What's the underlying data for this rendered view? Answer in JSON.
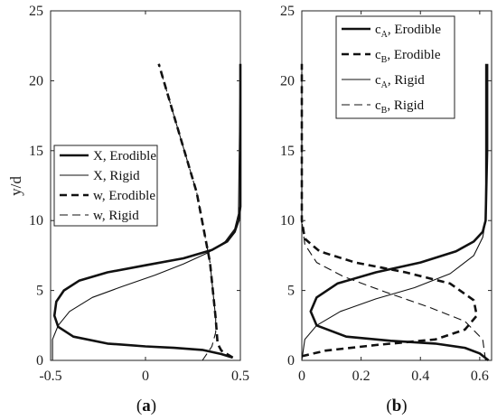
{
  "chart_data": [
    {
      "type": "line",
      "panel_label": "a",
      "ylabel": "y/d",
      "xlim": [
        -0.5,
        0.5
      ],
      "ylim": [
        0,
        25
      ],
      "xticks": [
        -0.5,
        0,
        0.5
      ],
      "xtick_labels": [
        "-0.5",
        "0",
        "0.5"
      ],
      "yticks": [
        0,
        5,
        10,
        15,
        20,
        25
      ],
      "ytick_labels": [
        "0",
        "5",
        "10",
        "15",
        "20",
        "25"
      ],
      "legend": {
        "placement": "center-left",
        "entries": [
          "X, Erodible",
          "X, Rigid",
          "w, Erodible",
          "w, Rigid"
        ]
      },
      "series": [
        {
          "name": "X, Erodible",
          "style": "thick-solid",
          "x": [
            0.46,
            0.4,
            0.3,
            0.15,
            0.0,
            -0.2,
            -0.38,
            -0.46,
            -0.48,
            -0.47,
            -0.43,
            -0.35,
            -0.2,
            0.0,
            0.2,
            0.35,
            0.43,
            0.47,
            0.49,
            0.5,
            0.5,
            0.5
          ],
          "y": [
            0.2,
            0.45,
            0.75,
            0.9,
            1.0,
            1.2,
            1.7,
            2.4,
            3.2,
            4.2,
            5.0,
            5.7,
            6.3,
            6.8,
            7.3,
            7.9,
            8.5,
            9.2,
            10.0,
            11.0,
            15.0,
            21.2
          ]
        },
        {
          "name": "X, Rigid",
          "style": "thin-solid",
          "x": [
            -0.49,
            -0.49,
            -0.46,
            -0.4,
            -0.28,
            -0.12,
            0.05,
            0.2,
            0.33,
            0.42,
            0.47,
            0.49,
            0.5
          ],
          "y": [
            0.0,
            1.5,
            2.5,
            3.5,
            4.5,
            5.3,
            6.1,
            6.9,
            7.7,
            8.5,
            9.4,
            10.5,
            21.2
          ]
        },
        {
          "name": "w, Erodible",
          "style": "thick-dashed",
          "x": [
            0.46,
            0.4,
            0.38,
            0.37,
            0.34,
            0.27,
            0.15,
            0.07
          ],
          "y": [
            0.2,
            0.7,
            1.2,
            3.0,
            7.0,
            12.0,
            17.5,
            21.2
          ]
        },
        {
          "name": "w, Rigid",
          "style": "thin-dashed",
          "x": [
            0.3,
            0.35,
            0.37,
            0.37,
            0.34,
            0.27,
            0.15,
            0.07
          ],
          "y": [
            0.0,
            1.0,
            2.0,
            3.0,
            7.0,
            12.0,
            17.5,
            21.2
          ]
        }
      ]
    },
    {
      "type": "line",
      "panel_label": "b",
      "ylabel": "",
      "xlim": [
        0,
        0.64
      ],
      "ylim": [
        0,
        25
      ],
      "xticks": [
        0,
        0.2,
        0.4,
        0.6
      ],
      "xtick_labels": [
        "0",
        "0.2",
        "0.4",
        "0.6"
      ],
      "yticks": [
        0,
        5,
        10,
        15,
        20,
        25
      ],
      "ytick_labels": [
        "0",
        "5",
        "10",
        "15",
        "20",
        "25"
      ],
      "legend": {
        "placement": "top",
        "entries": [
          {
            "main": "c",
            "sub": "A",
            "rest": ", Erodible"
          },
          {
            "main": "c",
            "sub": "B",
            "rest": ", Erodible"
          },
          {
            "main": "c",
            "sub": "A",
            "rest": ", Rigid"
          },
          {
            "main": "c",
            "sub": "B",
            "rest": ", Rigid"
          }
        ]
      },
      "series": [
        {
          "name": "cA, Erodible",
          "style": "thick-solid",
          "x": [
            0.63,
            0.6,
            0.55,
            0.45,
            0.3,
            0.15,
            0.05,
            0.03,
            0.05,
            0.12,
            0.25,
            0.4,
            0.52,
            0.58,
            0.61,
            0.62,
            0.625,
            0.625
          ],
          "y": [
            0.0,
            0.5,
            0.9,
            1.2,
            1.4,
            1.7,
            2.5,
            3.5,
            4.5,
            5.5,
            6.3,
            7.0,
            7.8,
            8.5,
            9.2,
            10.0,
            15.0,
            21.2
          ]
        },
        {
          "name": "cB, Erodible",
          "style": "thick-dashed",
          "x": [
            0.0,
            0.08,
            0.25,
            0.45,
            0.55,
            0.59,
            0.58,
            0.5,
            0.35,
            0.18,
            0.06,
            0.01,
            0.0,
            0.0
          ],
          "y": [
            0.3,
            0.7,
            1.1,
            1.5,
            2.2,
            3.2,
            4.3,
            5.5,
            6.3,
            7.0,
            7.8,
            8.7,
            10.0,
            21.2
          ]
        },
        {
          "name": "cA, Rigid",
          "style": "thin-solid",
          "x": [
            0.0,
            0.01,
            0.05,
            0.13,
            0.25,
            0.38,
            0.5,
            0.58,
            0.61,
            0.62,
            0.62
          ],
          "y": [
            0.0,
            1.5,
            2.5,
            3.5,
            4.4,
            5.2,
            6.2,
            7.5,
            8.8,
            10.0,
            21.2
          ]
        },
        {
          "name": "cB, Rigid",
          "style": "thin-dashed",
          "x": [
            0.62,
            0.61,
            0.55,
            0.43,
            0.28,
            0.14,
            0.05,
            0.01,
            0.0,
            0.0
          ],
          "y": [
            0.0,
            1.5,
            2.8,
            3.8,
            4.9,
            6.0,
            7.0,
            8.3,
            10.0,
            21.2
          ]
        }
      ]
    }
  ]
}
